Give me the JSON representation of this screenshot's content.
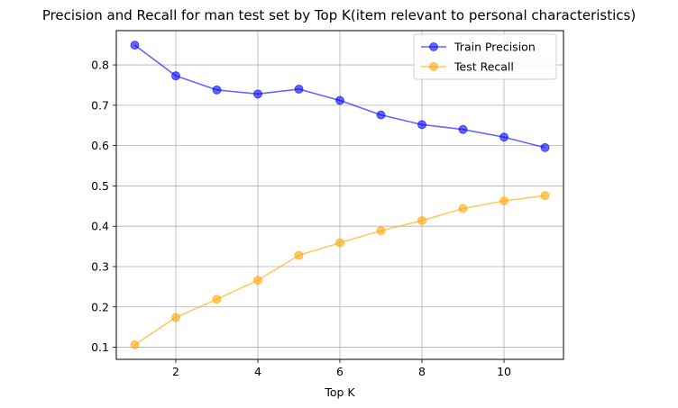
{
  "chart_data": {
    "type": "line",
    "title": "Precision and Recall for man test set by Top K(item relevant to personal characteristics)",
    "xlabel": "Top K",
    "ylabel": "",
    "xlim": [
      0.55,
      11.45
    ],
    "ylim": [
      0.07,
      0.885
    ],
    "xticks": [
      2,
      4,
      6,
      8,
      10
    ],
    "yticks": [
      0.1,
      0.2,
      0.3,
      0.4,
      0.5,
      0.6,
      0.7,
      0.8
    ],
    "grid": true,
    "legend_position": "top-right",
    "x": [
      1,
      2,
      3,
      4,
      5,
      6,
      7,
      8,
      9,
      10,
      11
    ],
    "series": [
      {
        "name": "Train Precision",
        "color": "#0000ff",
        "values": [
          0.849,
          0.773,
          0.738,
          0.728,
          0.74,
          0.712,
          0.676,
          0.652,
          0.64,
          0.621,
          0.595
        ]
      },
      {
        "name": "Test Recall",
        "color": "#ffa500",
        "values": [
          0.106,
          0.174,
          0.219,
          0.266,
          0.328,
          0.359,
          0.389,
          0.414,
          0.444,
          0.463,
          0.476
        ]
      }
    ]
  }
}
